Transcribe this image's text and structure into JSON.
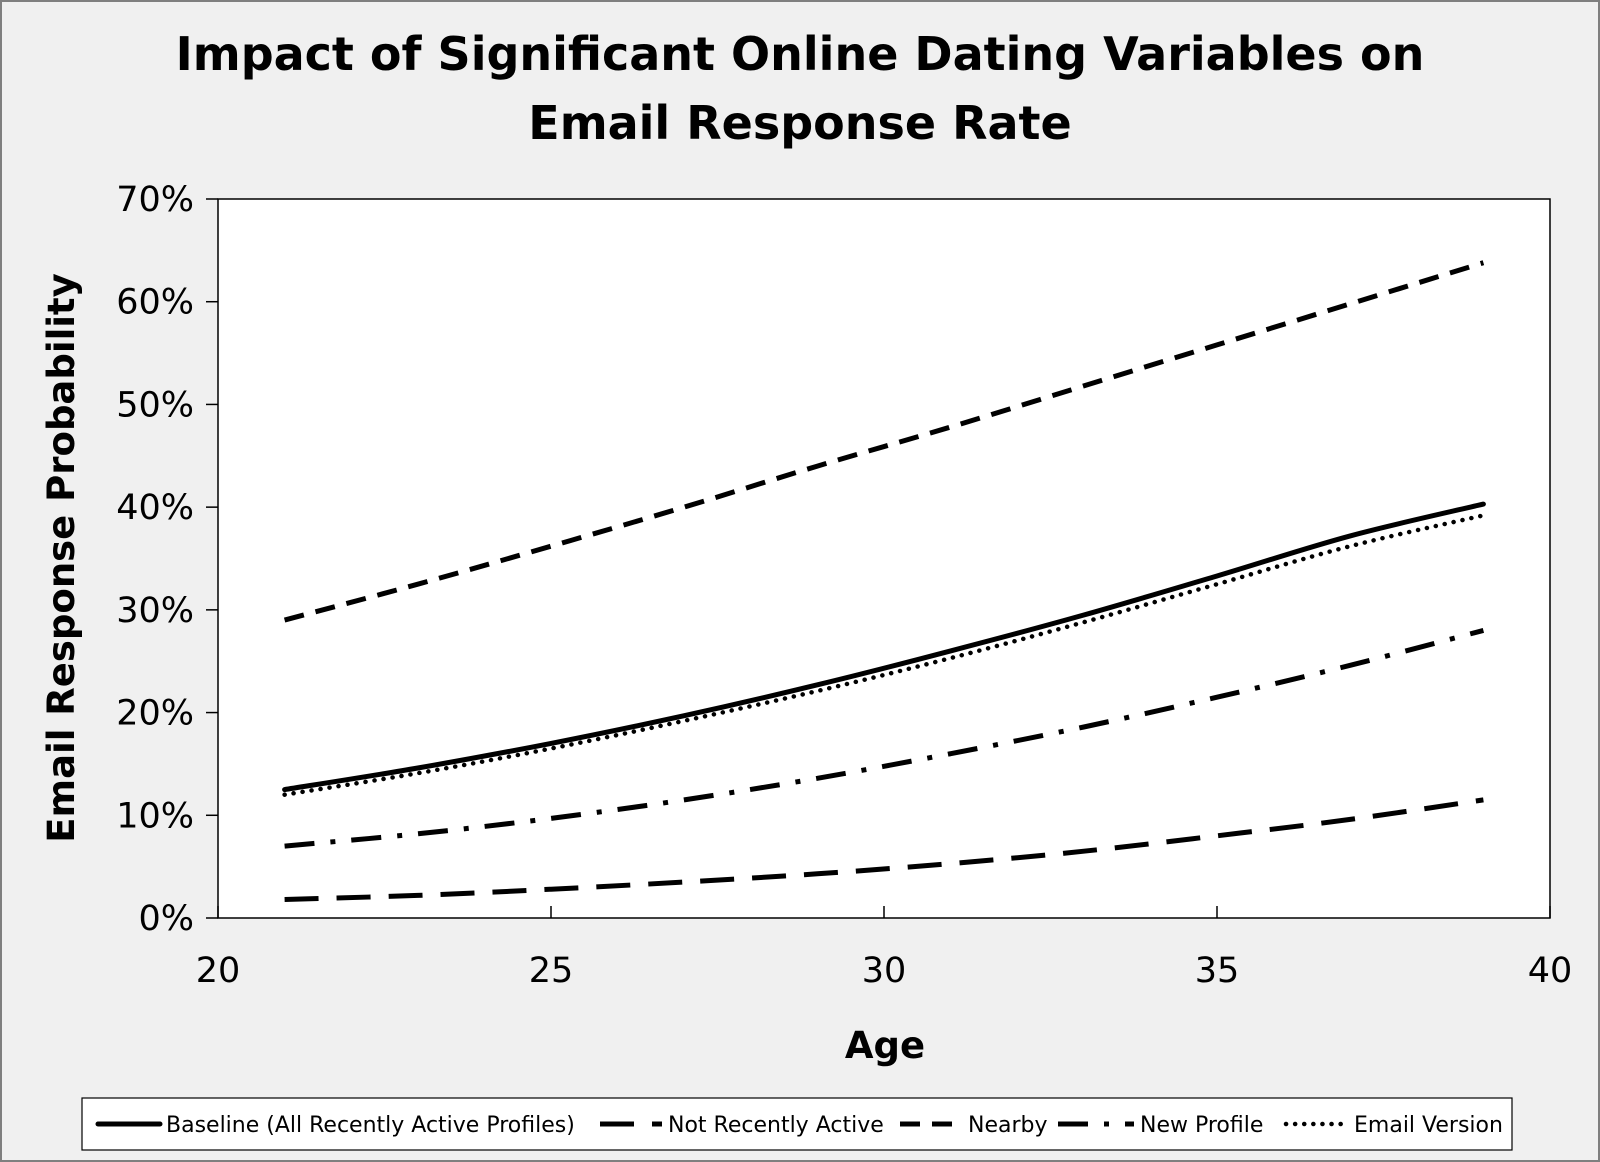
{
  "chart_data": {
    "type": "line",
    "title_lines": [
      "Impact of Significant Online Dating Variables on",
      "Email Response Rate"
    ],
    "xlabel": "Age",
    "ylabel": "Email Response Probability",
    "xlim": [
      20,
      40
    ],
    "ylim": [
      0,
      0.7
    ],
    "x_ticks": [
      20,
      25,
      30,
      35,
      40
    ],
    "y_ticks": [
      0,
      0.1,
      0.2,
      0.3,
      0.4,
      0.5,
      0.6,
      0.7
    ],
    "x_tick_labels": [
      "20",
      "25",
      "30",
      "35",
      "40"
    ],
    "y_tick_labels": [
      "0%",
      "10%",
      "20%",
      "30%",
      "40%",
      "50%",
      "60%",
      "70%"
    ],
    "grid": false,
    "legend_position": "bottom",
    "x": [
      21,
      23,
      25,
      27,
      29,
      31,
      33,
      35,
      37,
      39
    ],
    "series": [
      {
        "name": "Baseline (All Recently Active Profiles)",
        "style": "solid",
        "values": [
          0.125,
          0.146,
          0.17,
          0.197,
          0.227,
          0.26,
          0.295,
          0.333,
          0.372,
          0.403
        ]
      },
      {
        "name": "Not Recently Active",
        "style": "long-dash",
        "values": [
          0.018,
          0.022,
          0.028,
          0.035,
          0.043,
          0.053,
          0.065,
          0.08,
          0.096,
          0.115
        ]
      },
      {
        "name": "Nearby",
        "style": "dash",
        "values": [
          0.29,
          0.325,
          0.362,
          0.4,
          0.44,
          0.478,
          0.518,
          0.558,
          0.598,
          0.638
        ]
      },
      {
        "name": "New Profile",
        "style": "dash-dot",
        "values": [
          0.07,
          0.082,
          0.097,
          0.115,
          0.136,
          0.16,
          0.186,
          0.215,
          0.246,
          0.28
        ]
      },
      {
        "name": "Email Version",
        "style": "dotted",
        "values": [
          0.12,
          0.141,
          0.165,
          0.192,
          0.221,
          0.253,
          0.288,
          0.325,
          0.362,
          0.392
        ]
      }
    ]
  },
  "colors": {
    "figure_background": "#f0f0f0",
    "plot_background": "#ffffff",
    "line": "#000000"
  }
}
